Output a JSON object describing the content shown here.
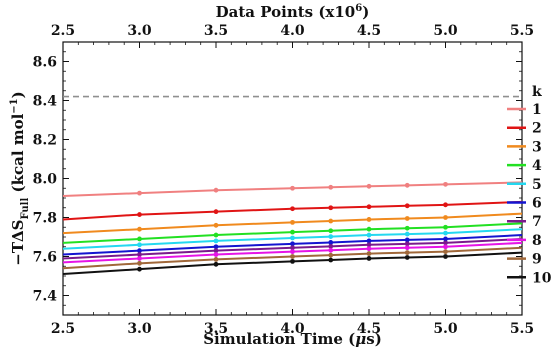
{
  "chart_data": {
    "type": "line",
    "xlabel": "Simulation Time (μs)",
    "x2label": "Data Points (x10^6)",
    "ylabel": "−TΔS_Full (kcal mol^−1)",
    "xlim": [
      2.5,
      5.5
    ],
    "ylim": [
      7.3,
      8.7
    ],
    "xticks": [
      2.5,
      3.0,
      3.5,
      4.0,
      4.5,
      5.0,
      5.5
    ],
    "xtick_labels": [
      "2.5",
      "3.0",
      "3.5",
      "4.0",
      "4.5",
      "5.0",
      "5.5"
    ],
    "x2tick_labels": [
      "2.5",
      "3.0",
      "3.5",
      "4.0",
      "4.5",
      "5.0",
      "5.5"
    ],
    "yticks": [
      7.4,
      7.6,
      7.8,
      8.0,
      8.2,
      8.4,
      8.6
    ],
    "ytick_labels": [
      "7.4",
      "7.6",
      "7.8",
      "8.0",
      "8.2",
      "8.4",
      "8.6"
    ],
    "reference_line": {
      "y": 8.42,
      "color": "#8f8f8f",
      "style": "dashed"
    },
    "legend": {
      "title": "k",
      "position": "right"
    },
    "x": [
      2.5,
      3.0,
      3.5,
      4.0,
      4.25,
      4.5,
      4.75,
      5.0,
      5.5
    ],
    "markers_x": [
      3.0,
      3.5,
      4.0,
      4.25,
      4.5,
      4.75,
      5.0
    ],
    "series": [
      {
        "name": "1",
        "color": "#f08080",
        "values": [
          7.91,
          7.925,
          7.94,
          7.95,
          7.955,
          7.96,
          7.965,
          7.97,
          7.98
        ]
      },
      {
        "name": "2",
        "color": "#e01414",
        "values": [
          7.79,
          7.815,
          7.83,
          7.845,
          7.85,
          7.855,
          7.86,
          7.865,
          7.88
        ]
      },
      {
        "name": "3",
        "color": "#f08a1e",
        "values": [
          7.72,
          7.74,
          7.76,
          7.775,
          7.782,
          7.79,
          7.795,
          7.8,
          7.82
        ]
      },
      {
        "name": "4",
        "color": "#22e022",
        "values": [
          7.67,
          7.69,
          7.71,
          7.725,
          7.732,
          7.74,
          7.745,
          7.75,
          7.77
        ]
      },
      {
        "name": "5",
        "color": "#24d8f0",
        "values": [
          7.64,
          7.66,
          7.68,
          7.695,
          7.702,
          7.71,
          7.715,
          7.72,
          7.74
        ]
      },
      {
        "name": "6",
        "color": "#1414d0",
        "values": [
          7.61,
          7.63,
          7.65,
          7.665,
          7.672,
          7.68,
          7.685,
          7.69,
          7.71
        ]
      },
      {
        "name": "7",
        "color": "#7a1a8c",
        "values": [
          7.59,
          7.61,
          7.63,
          7.645,
          7.652,
          7.66,
          7.665,
          7.67,
          7.69
        ]
      },
      {
        "name": "8",
        "color": "#e614e6",
        "values": [
          7.57,
          7.59,
          7.61,
          7.625,
          7.632,
          7.64,
          7.645,
          7.65,
          7.67
        ]
      },
      {
        "name": "9",
        "color": "#a0683a",
        "values": [
          7.54,
          7.565,
          7.585,
          7.6,
          7.607,
          7.615,
          7.62,
          7.625,
          7.645
        ]
      },
      {
        "name": "10",
        "color": "#111111",
        "values": [
          7.51,
          7.535,
          7.56,
          7.575,
          7.582,
          7.59,
          7.595,
          7.6,
          7.62
        ]
      }
    ]
  }
}
